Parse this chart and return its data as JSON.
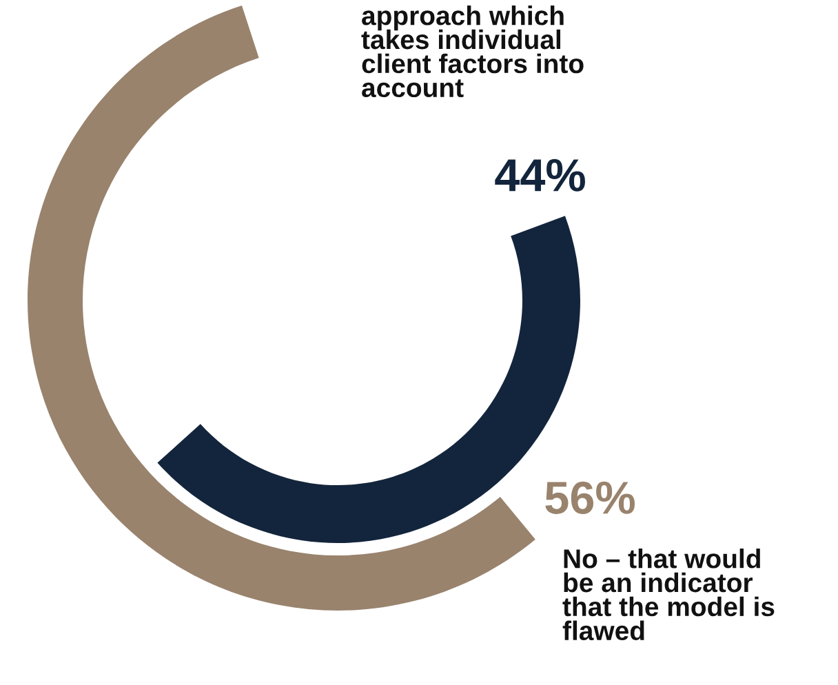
{
  "chart_data": {
    "type": "other",
    "categories": [
      "approach which\ntakes individual\nclient factors into\naccount",
      "No – that would\nbe an indicator\nthat the model is\nflawed"
    ],
    "values": [
      44,
      56
    ],
    "colors": [
      "#13253c",
      "#99836d"
    ],
    "value_labels": [
      "44%",
      "56%"
    ]
  }
}
